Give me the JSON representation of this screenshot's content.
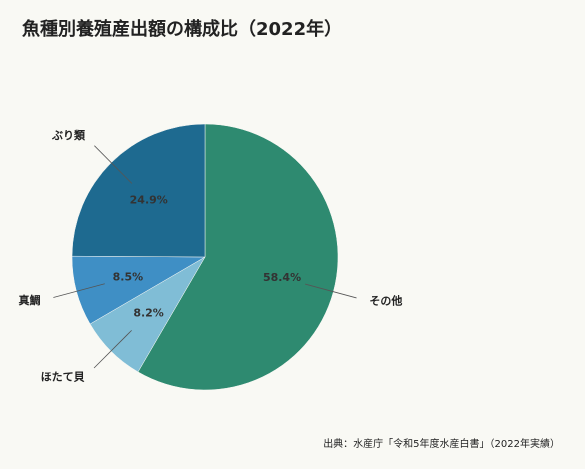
{
  "chart_data": {
    "type": "pie",
    "title": "魚種別養殖産出額の構成比（2022年）",
    "categories": [
      "その他",
      "ほたて貝",
      "真鯛",
      "ぶり類"
    ],
    "values": [
      58.4,
      8.2,
      8.5,
      24.9
    ],
    "value_labels": [
      "58.4%",
      "8.2%",
      "8.5%",
      "24.9%"
    ],
    "colors": [
      "#2e8a70",
      "#80bdd6",
      "#3f8fc5",
      "#1e6a90"
    ],
    "source": "出典：水産庁「令和5年度水産白書」（2022年実績）"
  }
}
